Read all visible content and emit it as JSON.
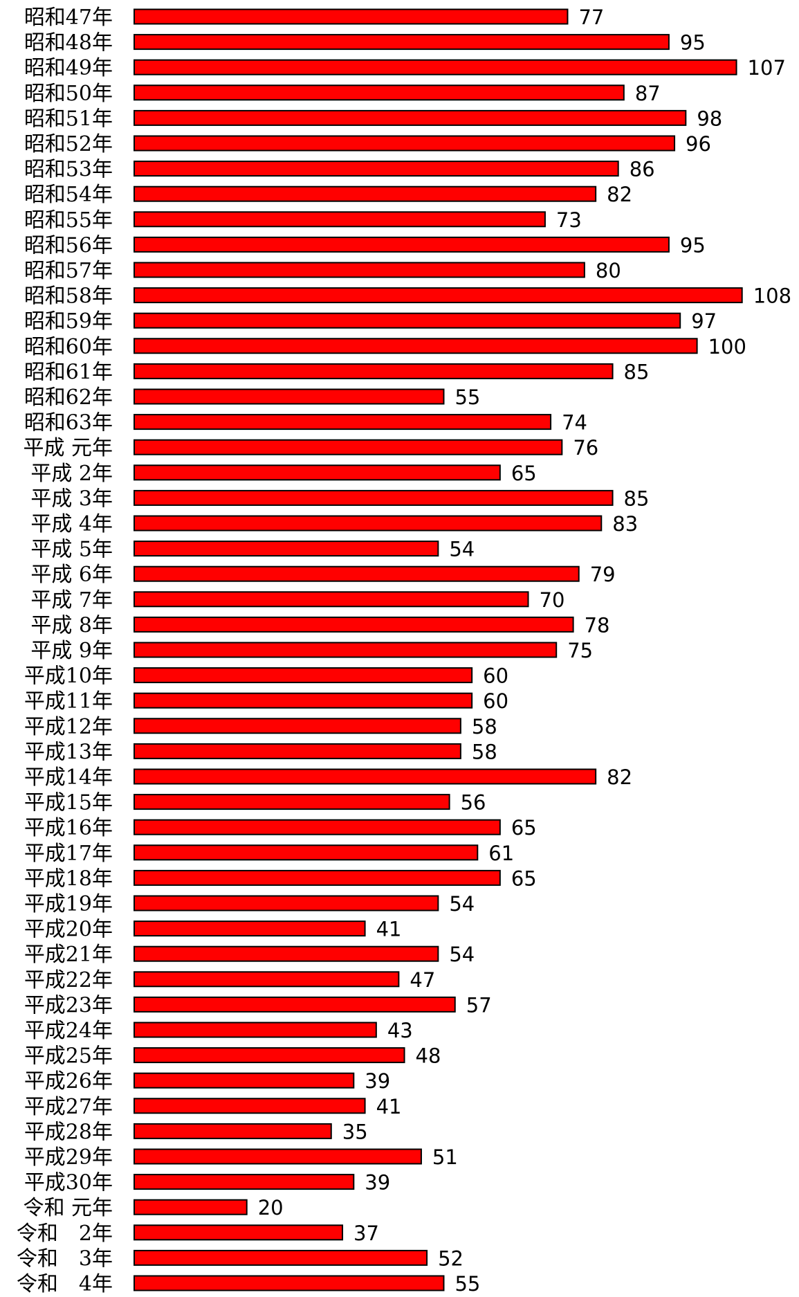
{
  "colors": {
    "bar_fill": "#ff0000",
    "bar_stroke": "#000000",
    "background": "#ffffff"
  },
  "chart_data": {
    "type": "bar",
    "orientation": "horizontal",
    "categories": [
      "昭和47年",
      "昭和48年",
      "昭和49年",
      "昭和50年",
      "昭和51年",
      "昭和52年",
      "昭和53年",
      "昭和54年",
      "昭和55年",
      "昭和56年",
      "昭和57年",
      "昭和58年",
      "昭和59年",
      "昭和60年",
      "昭和61年",
      "昭和62年",
      "昭和63年",
      "平成 元年",
      "平成 2年",
      "平成 3年",
      "平成 4年",
      "平成 5年",
      "平成 6年",
      "平成 7年",
      "平成 8年",
      "平成 9年",
      "平成10年",
      "平成11年",
      "平成12年",
      "平成13年",
      "平成14年",
      "平成15年",
      "平成16年",
      "平成17年",
      "平成18年",
      "平成19年",
      "平成20年",
      "平成21年",
      "平成22年",
      "平成23年",
      "平成24年",
      "平成25年",
      "平成26年",
      "平成27年",
      "平成28年",
      "平成29年",
      "平成30年",
      "令和 元年",
      "令和　2年",
      "令和　3年",
      "令和　4年"
    ],
    "values": [
      77,
      95,
      107,
      87,
      98,
      96,
      86,
      82,
      73,
      95,
      80,
      108,
      97,
      100,
      85,
      55,
      74,
      76,
      65,
      85,
      83,
      54,
      79,
      70,
      78,
      75,
      60,
      60,
      58,
      58,
      82,
      56,
      65,
      61,
      65,
      54,
      41,
      54,
      47,
      57,
      43,
      48,
      39,
      41,
      35,
      51,
      39,
      20,
      37,
      52,
      55
    ],
    "xlim": [
      0,
      108
    ],
    "grid": false,
    "legend": "none",
    "data_labels": true
  }
}
